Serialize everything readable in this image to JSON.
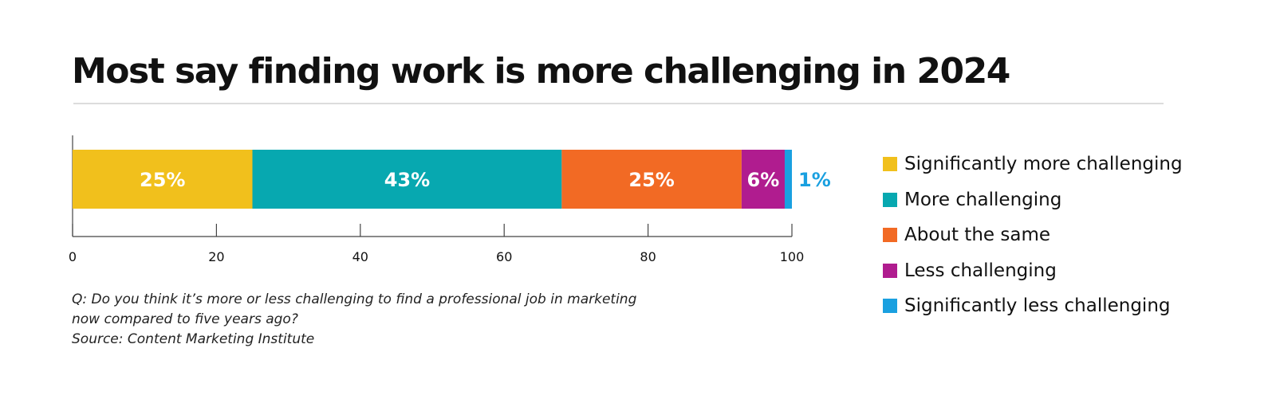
{
  "title": "Most say finding work is more challenging in 2024",
  "notes": [
    "Q: Do you think it’s more or less challenging to find a professional job in marketing",
    "now compared to five years ago?",
    "Source: Content Marketing Institute"
  ],
  "chart_data": {
    "type": "bar",
    "orientation": "horizontal",
    "stacked": true,
    "categories": [
      ""
    ],
    "series": [
      {
        "name": "Significantly more challenging",
        "values": [
          25
        ],
        "label": "25%",
        "color": "#f1c01c"
      },
      {
        "name": "More challenging",
        "values": [
          43
        ],
        "label": "43%",
        "color": "#07a8b0"
      },
      {
        "name": "About the same",
        "values": [
          25
        ],
        "label": "25%",
        "color": "#f26a24"
      },
      {
        "name": "Less challenging",
        "values": [
          6
        ],
        "label": "6%",
        "color": "#b01c8f"
      },
      {
        "name": "Significantly less challenging",
        "values": [
          1
        ],
        "label": "1%",
        "color": "#1aa0e0"
      }
    ],
    "xlim": [
      0,
      100
    ],
    "xticks": [
      "0",
      "20",
      "40",
      "60",
      "80",
      "100"
    ],
    "grid": false,
    "legend_position": "right"
  }
}
